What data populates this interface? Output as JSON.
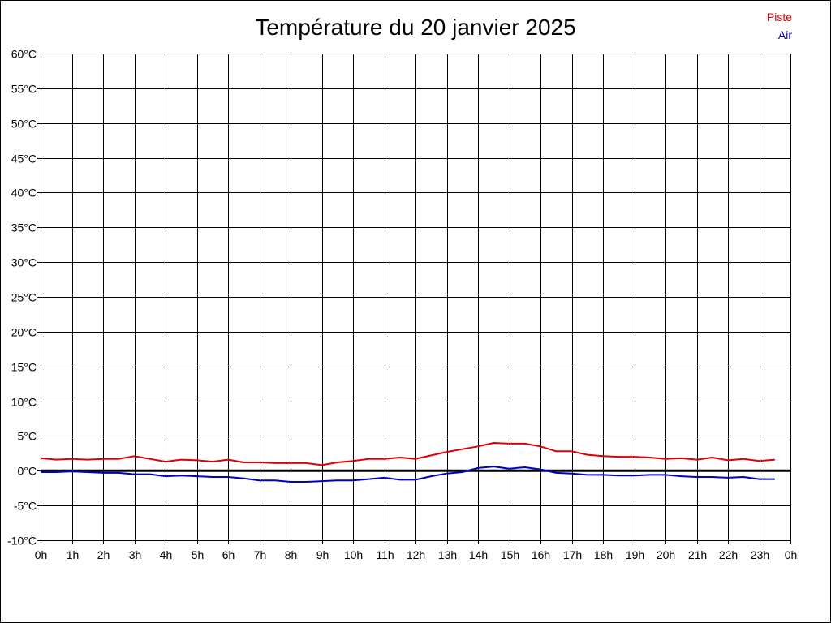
{
  "chart_data": {
    "type": "line",
    "title": "Température du 20 janvier 2025",
    "xlabel": "",
    "ylabel": "",
    "x_ticks": [
      "0h",
      "1h",
      "2h",
      "3h",
      "4h",
      "5h",
      "6h",
      "7h",
      "8h",
      "9h",
      "10h",
      "11h",
      "12h",
      "13h",
      "14h",
      "15h",
      "16h",
      "17h",
      "18h",
      "19h",
      "20h",
      "21h",
      "22h",
      "23h",
      "0h"
    ],
    "y_ticks": [
      "60°C",
      "55°C",
      "50°C",
      "45°C",
      "40°C",
      "35°C",
      "30°C",
      "25°C",
      "20°C",
      "15°C",
      "10°C",
      "5°C",
      "0°C",
      "-5°C",
      "-10°C"
    ],
    "ylim": [
      -10,
      60
    ],
    "xlim": [
      0,
      24
    ],
    "grid": true,
    "legend_position": "top-right",
    "zero_line": true,
    "x": [
      0,
      0.5,
      1,
      1.5,
      2,
      2.5,
      3,
      3.5,
      4,
      4.5,
      5,
      5.5,
      6,
      6.5,
      7,
      7.5,
      8,
      8.5,
      9,
      9.5,
      10,
      10.5,
      11,
      11.5,
      12,
      12.5,
      13,
      13.5,
      14,
      14.5,
      15,
      15.5,
      16,
      16.5,
      17,
      17.5,
      18,
      18.5,
      19,
      19.5,
      20,
      20.5,
      21,
      21.5,
      22,
      22.5,
      23,
      23.5
    ],
    "series": [
      {
        "name": "Piste",
        "color": "#e00000",
        "values": [
          1.8,
          1.6,
          1.7,
          1.6,
          1.7,
          1.7,
          2.1,
          1.7,
          1.3,
          1.6,
          1.5,
          1.3,
          1.6,
          1.2,
          1.2,
          1.1,
          1.1,
          1.1,
          0.8,
          1.2,
          1.4,
          1.7,
          1.7,
          1.9,
          1.7,
          2.2,
          2.7,
          3.1,
          3.5,
          4.0,
          3.9,
          3.9,
          3.5,
          2.8,
          2.8,
          2.3,
          2.1,
          2.0,
          2.0,
          1.9,
          1.7,
          1.8,
          1.6,
          1.9,
          1.5,
          1.7,
          1.4,
          1.6
        ]
      },
      {
        "name": "Air",
        "color": "#0000c0",
        "values": [
          -0.2,
          -0.2,
          -0.1,
          -0.2,
          -0.3,
          -0.3,
          -0.5,
          -0.5,
          -0.8,
          -0.7,
          -0.8,
          -0.9,
          -0.9,
          -1.1,
          -1.4,
          -1.4,
          -1.6,
          -1.6,
          -1.5,
          -1.4,
          -1.4,
          -1.2,
          -1.0,
          -1.3,
          -1.3,
          -0.8,
          -0.4,
          -0.2,
          0.4,
          0.6,
          0.3,
          0.5,
          0.2,
          -0.3,
          -0.4,
          -0.6,
          -0.6,
          -0.7,
          -0.7,
          -0.6,
          -0.6,
          -0.8,
          -0.9,
          -0.9,
          -1.0,
          -0.9,
          -1.2,
          -1.2
        ]
      }
    ]
  }
}
